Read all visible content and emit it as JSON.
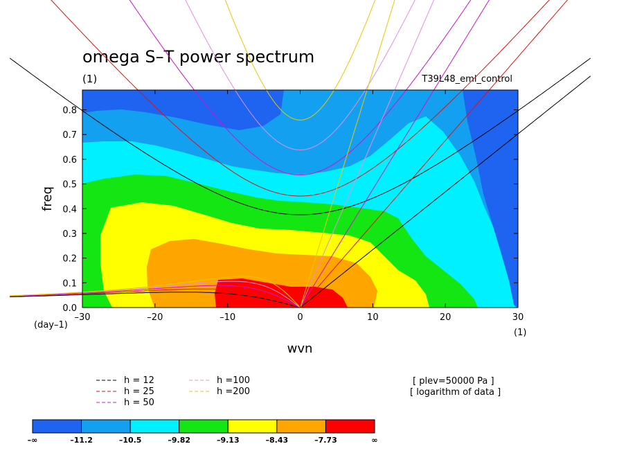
{
  "chart_data": {
    "type": "contour",
    "title": "omega S–T power spectrum",
    "title_units": "(1)",
    "experiment": "T39L48_eml_control",
    "xlabel": "wvn",
    "ylabel": "freq",
    "y_units": "(day–1)",
    "x_units": "(1)",
    "xlim": [
      -30,
      30
    ],
    "ylim": [
      0,
      0.88
    ],
    "x_ticks": [
      -30,
      -20,
      -10,
      0,
      10,
      20,
      30
    ],
    "x_tick_labels": [
      "–30",
      "–20",
      "–10",
      "0",
      "10",
      "20",
      "30"
    ],
    "y_ticks": [
      0,
      0.1,
      0.2,
      0.3,
      0.4,
      0.5,
      0.6,
      0.7,
      0.8
    ],
    "y_tick_labels": [
      "0.0",
      "0.1",
      "0.2",
      "0.3",
      "0.4",
      "0.5",
      "0.6",
      "0.7",
      "0.8"
    ],
    "level_labels": [
      "–∞",
      "–11.2",
      "–10.5",
      "–9.82",
      "–9.13",
      "–8.43",
      "–7.73",
      "∞"
    ],
    "level_colors": [
      "#1e64f0",
      "#14a0f0",
      "#00f0ff",
      "#14e614",
      "#ffff00",
      "#ffa500",
      "#ff0000"
    ],
    "dispersion_curves": [
      {
        "label": "h = 12",
        "h": 12,
        "color": "#000000"
      },
      {
        "label": "h = 25",
        "h": 25,
        "color": "#e01010"
      },
      {
        "label": "h = 50",
        "h": 50,
        "color": "#d010d0"
      },
      {
        "label": "h =100",
        "h": 100,
        "color": "#e090e0"
      },
      {
        "label": "h =200",
        "h": 200,
        "color": "#e8c800"
      }
    ],
    "annotations": [
      "[ plev=50000 Pa ]",
      "[ logarithm of data ]"
    ]
  }
}
